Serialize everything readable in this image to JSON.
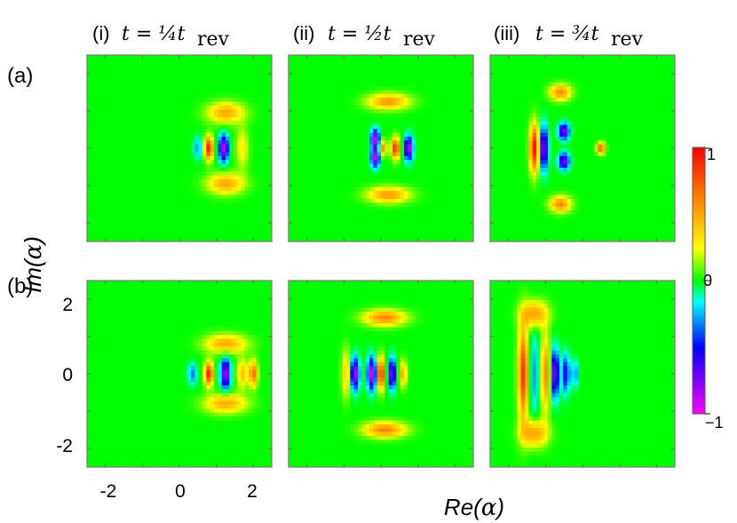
{
  "chart_data": {
    "type": "heatmap",
    "description_colormap": [
      "#ff00ff",
      "#0000ff",
      "#00ffff",
      "#00ff00",
      "#ffff00",
      "#ff0000"
    ],
    "column_labels": [
      {
        "roman": "(i)",
        "time": "t = ¼t",
        "sub": "rev"
      },
      {
        "roman": "(ii)",
        "time": "t = ½t",
        "sub": "rev"
      },
      {
        "roman": "(iii)",
        "time": "t = ¾t",
        "sub": "rev"
      }
    ],
    "row_labels": [
      "(a)",
      "(b)"
    ],
    "xlabel_parts": [
      "Re(",
      "α",
      ")"
    ],
    "ylabel_parts": [
      "Im(",
      "α",
      ")"
    ],
    "xlim": [
      -2.5,
      2.5
    ],
    "ylim": [
      -2.5,
      2.5
    ],
    "x_ticks": [
      "-2",
      "0",
      "2"
    ],
    "y_ticks": [
      "2",
      "0",
      "-2"
    ],
    "colorbar": {
      "min": -1,
      "max": 1,
      "ticks": [
        "1",
        "0",
        "−1"
      ]
    },
    "panels": [
      {
        "row": "a",
        "col": "i",
        "features": [
          {
            "cx": 0.8,
            "cy": 0.0,
            "amp": 0.95,
            "sx": 0.08,
            "sy": 0.22
          },
          {
            "cx": 1.2,
            "cy": 0.0,
            "amp": -0.9,
            "sx": 0.09,
            "sy": 0.25
          },
          {
            "cx": 0.5,
            "cy": 0.0,
            "amp": -0.3,
            "sx": 0.08,
            "sy": 0.2
          },
          {
            "cx": 1.25,
            "cy": 0.95,
            "amp": 0.5,
            "sx": 0.35,
            "sy": 0.2
          },
          {
            "cx": 1.25,
            "cy": -0.95,
            "amp": 0.5,
            "sx": 0.35,
            "sy": 0.2
          },
          {
            "cx": 1.7,
            "cy": 0.0,
            "amp": 0.3,
            "sx": 0.12,
            "sy": 0.4
          }
        ]
      },
      {
        "row": "a",
        "col": "ii",
        "features": [
          {
            "cx": 0.4,
            "cy": 0.0,
            "amp": 0.9,
            "sx": 0.08,
            "sy": 0.2
          },
          {
            "cx": 0.75,
            "cy": 0.0,
            "amp": -0.95,
            "sx": 0.08,
            "sy": 0.22
          },
          {
            "cx": -0.15,
            "cy": 0.25,
            "amp": -0.9,
            "sx": 0.08,
            "sy": 0.18
          },
          {
            "cx": -0.15,
            "cy": -0.25,
            "amp": -0.9,
            "sx": 0.08,
            "sy": 0.18
          },
          {
            "cx": 0.05,
            "cy": 0.0,
            "amp": 0.6,
            "sx": 0.07,
            "sy": 0.15
          },
          {
            "cx": 0.2,
            "cy": 1.25,
            "amp": 0.55,
            "sx": 0.4,
            "sy": 0.15
          },
          {
            "cx": 0.2,
            "cy": -1.25,
            "amp": 0.55,
            "sx": 0.4,
            "sy": 0.15
          }
        ]
      },
      {
        "row": "a",
        "col": "iii",
        "features": [
          {
            "cx": 0.5,
            "cy": 0.0,
            "amp": 0.8,
            "sx": 0.08,
            "sy": 0.1
          },
          {
            "cx": -1.3,
            "cy": 0.0,
            "amp": 0.95,
            "sx": 0.09,
            "sy": 0.45
          },
          {
            "cx": -1.05,
            "cy": 0.0,
            "amp": -0.85,
            "sx": 0.08,
            "sy": 0.4
          },
          {
            "cx": -0.5,
            "cy": 0.45,
            "amp": -0.8,
            "sx": 0.1,
            "sy": 0.15
          },
          {
            "cx": -0.5,
            "cy": -0.35,
            "amp": -0.8,
            "sx": 0.1,
            "sy": 0.15
          },
          {
            "cx": -0.6,
            "cy": 1.5,
            "amp": 0.6,
            "sx": 0.2,
            "sy": 0.15
          },
          {
            "cx": -0.6,
            "cy": -1.5,
            "amp": 0.6,
            "sx": 0.2,
            "sy": 0.15
          }
        ]
      },
      {
        "row": "b",
        "col": "i",
        "features": [
          {
            "cx": 0.8,
            "cy": 0.0,
            "amp": 0.95,
            "sx": 0.08,
            "sy": 0.22
          },
          {
            "cx": 1.25,
            "cy": 0.0,
            "amp": -0.9,
            "sx": 0.09,
            "sy": 0.28
          },
          {
            "cx": 1.7,
            "cy": 0.0,
            "amp": 0.45,
            "sx": 0.1,
            "sy": 0.28
          },
          {
            "cx": 2.0,
            "cy": 0.0,
            "amp": 0.7,
            "sx": 0.08,
            "sy": 0.25
          },
          {
            "cx": 1.25,
            "cy": 0.8,
            "amp": 0.5,
            "sx": 0.4,
            "sy": 0.18
          },
          {
            "cx": 1.25,
            "cy": -0.8,
            "amp": 0.5,
            "sx": 0.4,
            "sy": 0.18
          },
          {
            "cx": 0.35,
            "cy": 0.0,
            "amp": -0.35,
            "sx": 0.08,
            "sy": 0.2
          }
        ]
      },
      {
        "row": "b",
        "col": "ii",
        "features": [
          {
            "cx": -0.7,
            "cy": 0.0,
            "amp": -0.9,
            "sx": 0.08,
            "sy": 0.3
          },
          {
            "cx": -0.25,
            "cy": 0.0,
            "amp": -0.95,
            "sx": 0.08,
            "sy": 0.3
          },
          {
            "cx": 0.0,
            "cy": 0.0,
            "amp": 0.95,
            "sx": 0.07,
            "sy": 0.3
          },
          {
            "cx": 0.3,
            "cy": 0.0,
            "amp": -0.85,
            "sx": 0.07,
            "sy": 0.28
          },
          {
            "cx": 0.6,
            "cy": 0.0,
            "amp": 0.5,
            "sx": 0.07,
            "sy": 0.25
          },
          {
            "cx": 0.1,
            "cy": 1.5,
            "amp": 0.6,
            "sx": 0.4,
            "sy": 0.15
          },
          {
            "cx": 0.1,
            "cy": -1.5,
            "amp": 0.6,
            "sx": 0.4,
            "sy": 0.15
          },
          {
            "cx": -0.95,
            "cy": 0.0,
            "amp": 0.4,
            "sx": 0.08,
            "sy": 0.45
          }
        ]
      },
      {
        "row": "b",
        "col": "iii",
        "features": [
          {
            "cx": -1.6,
            "cy": 0.0,
            "amp": 0.85,
            "sx": 0.1,
            "sy": 0.9
          },
          {
            "cx": -1.3,
            "cy": 0.0,
            "amp": -0.3,
            "sx": 0.1,
            "sy": 0.8
          },
          {
            "cx": -1.0,
            "cy": 0.0,
            "amp": 0.6,
            "sx": 0.1,
            "sy": 0.7
          },
          {
            "cx": -0.75,
            "cy": 0.0,
            "amp": -0.85,
            "sx": 0.08,
            "sy": 0.45
          },
          {
            "cx": -0.45,
            "cy": 0.0,
            "amp": -0.6,
            "sx": 0.07,
            "sy": 0.35
          },
          {
            "cx": -0.2,
            "cy": 0.0,
            "amp": -0.35,
            "sx": 0.06,
            "sy": 0.25
          },
          {
            "cx": -1.3,
            "cy": 1.6,
            "amp": 0.55,
            "sx": 0.25,
            "sy": 0.25
          },
          {
            "cx": -1.3,
            "cy": -1.6,
            "amp": 0.55,
            "sx": 0.25,
            "sy": 0.25
          }
        ]
      }
    ]
  }
}
